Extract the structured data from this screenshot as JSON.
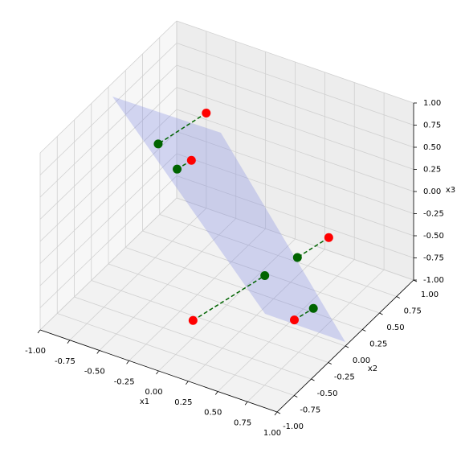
{
  "chart_data": {
    "type": "scatter3d",
    "xlabel": "x1",
    "ylabel": "x2",
    "zlabel": "x3",
    "xlim": [
      -1,
      1
    ],
    "ylim": [
      -1,
      1
    ],
    "zlim": [
      -1,
      1
    ],
    "xticks": [
      {
        "value": -1,
        "label": "-1.00"
      },
      {
        "value": -0.75,
        "label": "-0.75"
      },
      {
        "value": -0.5,
        "label": "-0.50"
      },
      {
        "value": -0.25,
        "label": "-0.25"
      },
      {
        "value": 0,
        "label": "0.00"
      },
      {
        "value": 0.25,
        "label": "0.25"
      },
      {
        "value": 0.5,
        "label": "0.50"
      },
      {
        "value": 0.75,
        "label": "0.75"
      },
      {
        "value": 1,
        "label": "1.00"
      }
    ],
    "yticks": [
      {
        "value": -1,
        "label": "-1.00"
      },
      {
        "value": -0.75,
        "label": "-0.75"
      },
      {
        "value": -0.5,
        "label": "-0.50"
      },
      {
        "value": -0.25,
        "label": "-0.25"
      },
      {
        "value": 0,
        "label": "0.00"
      },
      {
        "value": 0.25,
        "label": "0.25"
      },
      {
        "value": 0.5,
        "label": "0.50"
      },
      {
        "value": 0.75,
        "label": "0.75"
      },
      {
        "value": 1,
        "label": "1.00"
      }
    ],
    "zticks": [
      {
        "value": -1,
        "label": "-1.00"
      },
      {
        "value": -0.75,
        "label": "-0.75"
      },
      {
        "value": -0.5,
        "label": "-0.50"
      },
      {
        "value": -0.25,
        "label": "-0.25"
      },
      {
        "value": 0,
        "label": "0.00"
      },
      {
        "value": 0.25,
        "label": "0.25"
      },
      {
        "value": 0.5,
        "label": "0.50"
      },
      {
        "value": 0.75,
        "label": "0.75"
      },
      {
        "value": 1,
        "label": "1.00"
      }
    ],
    "grid": true,
    "series": [
      {
        "color": "#ff0000",
        "x1": [
          -0.52,
          -0.53,
          0.86,
          0.06,
          0.8
        ],
        "x2": [
          0.6,
          0.4,
          0,
          -0.6,
          -0.4
        ],
        "x3": [
          0.48,
          0.09,
          0.16,
          -0.7,
          -0.5
        ]
      },
      {
        "color": "#006400",
        "x1": [
          -0.58,
          -0.42,
          0.48,
          0.32,
          0.73
        ],
        "x2": [
          0,
          0,
          0.2,
          0,
          0
        ],
        "x3": [
          0.55,
          0.34,
          -0.39,
          -0.52,
          -0.7
        ]
      }
    ]
  }
}
